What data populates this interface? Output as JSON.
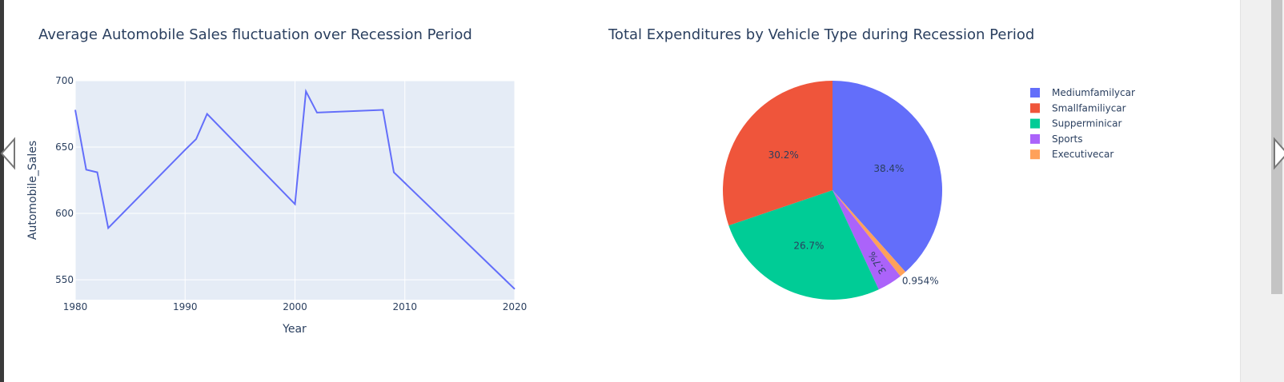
{
  "chart_data": [
    {
      "type": "line",
      "title": "Average Automobile Sales fluctuation over Recession Period",
      "xlabel": "Year",
      "ylabel": "Automobile_Sales",
      "xlim": [
        1980,
        2020
      ],
      "ylim": [
        535,
        700
      ],
      "xticks": [
        1980,
        1990,
        2000,
        2010,
        2020
      ],
      "yticks": [
        550,
        600,
        650,
        700
      ],
      "grid": true,
      "series": [
        {
          "color": "#636efa",
          "x": [
            1980,
            1981,
            1982,
            1983,
            1990,
            1991,
            1992,
            2000,
            2001,
            2002,
            2008,
            2009,
            2020
          ],
          "y": [
            678,
            633,
            631,
            589,
            648,
            656,
            675,
            607,
            692,
            676,
            678,
            631,
            543
          ]
        }
      ]
    },
    {
      "type": "pie",
      "title": "Total Expenditures by Vehicle Type during Recession Period",
      "legend_position": "top-right",
      "labels": [
        "Mediumfamilycar",
        "Smallfamiliycar",
        "Supperminicar",
        "Sports",
        "Executivecar"
      ],
      "legend_order": [
        "Mediumfamilycar",
        "Smallfamiliycar",
        "Supperminicar",
        "Sports",
        "Executivecar"
      ],
      "values": [
        38.4,
        30.2,
        26.7,
        3.7,
        0.954
      ],
      "value_labels": [
        "38.4%",
        "30.2%",
        "26.7%",
        "3.7%",
        "0.954%"
      ],
      "slice_order": [
        "Mediumfamilycar",
        "Executivecar",
        "Sports",
        "Supperminicar",
        "Smallfamiliycar"
      ],
      "colors": {
        "Mediumfamilycar": "#636efa",
        "Smallfamiliycar": "#ef553b",
        "Supperminicar": "#00cc96",
        "Sports": "#ab63fa",
        "Executivecar": "#ffa15a"
      }
    }
  ]
}
